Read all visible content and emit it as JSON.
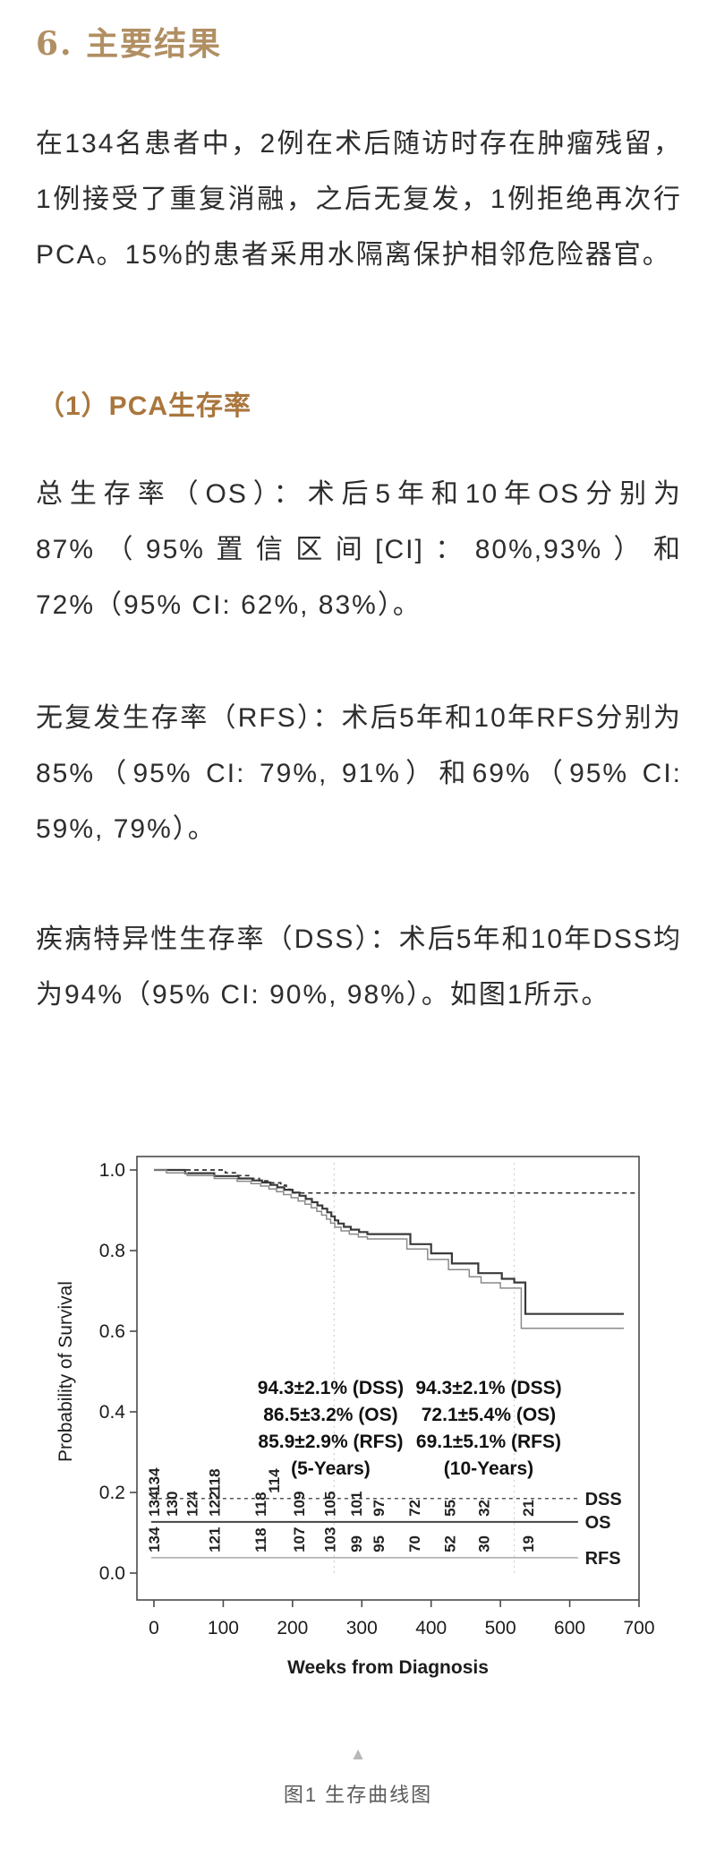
{
  "doc": {
    "section_title": "6. 主要结果",
    "para1": "在134名患者中，2例在术后随访时存在肿瘤残留，1例接受了重复消融，之后无复发，1例拒绝再次行PCA。15%的患者采用水隔离保护相邻危险器官。",
    "sub_heading": "（1）PCA生存率",
    "para_os": "总生存率（OS）：术后5年和10年OS分别为87%（95%置信区间[CI]：80%,93%）和72%（95% CI: 62%, 83%）。",
    "para_rfs": "无复发生存率（RFS）：术后5年和10年RFS分别为85%（95% CI: 79%, 91%）和69%（95% CI: 59%, 79%）。",
    "para_dss": "疾病特异性生存率（DSS）：术后5年和10年DSS均为94%（95% CI: 90%, 98%）。如图1所示。",
    "figure_arrow": "▲",
    "figure_caption": "图1 生存曲线图",
    "colors": {
      "section_title_brown": "#b18f63",
      "sub_heading_brown": "#a9763d",
      "body_text": "#2d2d2d",
      "caption_gray": "#5a5a5a",
      "os_curve": "#3a3a3a",
      "rfs_curve": "#8a8a8a",
      "dss_curve": "#2f2f2f",
      "guide_line": "#c8c8c8"
    }
  },
  "chart_data": {
    "type": "line",
    "subtype": "kaplan-meier-step",
    "title": "",
    "xlabel": "Weeks from Diagnosis",
    "ylabel": "Probability of Survival",
    "xlim": [
      0,
      700
    ],
    "xticks": [
      0,
      100,
      200,
      300,
      400,
      500,
      600,
      700
    ],
    "ylim": [
      0.0,
      1.0
    ],
    "yticks": [
      "0.0",
      "0.2",
      "0.4",
      "0.6",
      "0.8",
      "1.0"
    ],
    "grid": false,
    "vlines_weeks": [
      260,
      520
    ],
    "series": [
      {
        "name": "DSS",
        "style": "dashed",
        "color": "#2f2f2f",
        "width": 1.7,
        "points": [
          [
            0,
            1.0
          ],
          [
            92,
            1.0
          ],
          [
            103,
            0.993
          ],
          [
            121,
            0.986
          ],
          [
            138,
            0.979
          ],
          [
            152,
            0.973
          ],
          [
            164,
            0.968
          ],
          [
            183,
            0.962
          ],
          [
            191,
            0.952
          ],
          [
            197,
            0.943
          ],
          [
            700,
            0.943
          ]
        ]
      },
      {
        "name": "OS",
        "style": "solid",
        "color": "#3a3a3a",
        "width": 2.2,
        "points": [
          [
            0,
            1.0
          ],
          [
            45,
            0.992
          ],
          [
            87,
            0.985
          ],
          [
            122,
            0.979
          ],
          [
            142,
            0.974
          ],
          [
            156,
            0.969
          ],
          [
            168,
            0.963
          ],
          [
            178,
            0.957
          ],
          [
            188,
            0.951
          ],
          [
            200,
            0.944
          ],
          [
            210,
            0.936
          ],
          [
            219,
            0.928
          ],
          [
            228,
            0.92
          ],
          [
            236,
            0.912
          ],
          [
            243,
            0.904
          ],
          [
            250,
            0.895
          ],
          [
            256,
            0.885
          ],
          [
            261,
            0.875
          ],
          [
            266,
            0.867
          ],
          [
            274,
            0.859
          ],
          [
            284,
            0.852
          ],
          [
            296,
            0.846
          ],
          [
            308,
            0.841
          ],
          [
            370,
            0.816
          ],
          [
            400,
            0.793
          ],
          [
            430,
            0.768
          ],
          [
            468,
            0.744
          ],
          [
            502,
            0.73
          ],
          [
            520,
            0.721
          ],
          [
            536,
            0.643
          ],
          [
            678,
            0.643
          ]
        ]
      },
      {
        "name": "RFS",
        "style": "solid",
        "color": "#8a8a8a",
        "width": 1.5,
        "points": [
          [
            0,
            1.0
          ],
          [
            18,
            0.993
          ],
          [
            48,
            0.986
          ],
          [
            87,
            0.979
          ],
          [
            120,
            0.972
          ],
          [
            140,
            0.966
          ],
          [
            154,
            0.96
          ],
          [
            166,
            0.953
          ],
          [
            177,
            0.946
          ],
          [
            187,
            0.939
          ],
          [
            198,
            0.931
          ],
          [
            208,
            0.923
          ],
          [
            218,
            0.915
          ],
          [
            227,
            0.906
          ],
          [
            235,
            0.897
          ],
          [
            242,
            0.888
          ],
          [
            249,
            0.878
          ],
          [
            255,
            0.868
          ],
          [
            261,
            0.858
          ],
          [
            270,
            0.849
          ],
          [
            282,
            0.841
          ],
          [
            295,
            0.834
          ],
          [
            308,
            0.829
          ],
          [
            365,
            0.804
          ],
          [
            395,
            0.778
          ],
          [
            425,
            0.753
          ],
          [
            455,
            0.735
          ],
          [
            472,
            0.72
          ],
          [
            500,
            0.707
          ],
          [
            530,
            0.607
          ],
          [
            678,
            0.607
          ]
        ]
      }
    ],
    "annotations": [
      {
        "anchor_week": 255,
        "lines": [
          "94.3±2.1% (DSS)",
          "86.5±3.2% (OS)",
          "85.9±2.9% (RFS)",
          "(5-Years)"
        ]
      },
      {
        "anchor_week": 483,
        "lines": [
          "94.3±2.1% (DSS)",
          "72.1±5.4% (OS)",
          "69.1±5.1% (RFS)",
          "(10-Years)"
        ]
      }
    ],
    "at_risk": [
      {
        "name": "DSS",
        "line_prob": 0.185,
        "style": "dashed",
        "color": "#555555",
        "width": 1.4,
        "weeks": [
          0,
          87,
          173
        ],
        "counts": [
          134,
          118,
          114
        ]
      },
      {
        "name": "OS",
        "line_prob": 0.127,
        "style": "solid",
        "color": "#444444",
        "width": 2.0,
        "weeks": [
          0,
          26,
          55,
          87,
          154,
          209,
          254,
          292,
          324,
          376,
          427,
          476,
          540
        ],
        "counts": [
          134,
          130,
          124,
          122,
          118,
          109,
          105,
          101,
          97,
          72,
          55,
          32,
          21
        ]
      },
      {
        "name": "RFS",
        "line_prob": 0.038,
        "style": "solid",
        "color": "#999999",
        "width": 1.2,
        "weeks": [
          0,
          87,
          154,
          209,
          254,
          292,
          324,
          376,
          427,
          476,
          540
        ],
        "counts": [
          134,
          121,
          118,
          107,
          103,
          99,
          95,
          70,
          52,
          30,
          19
        ]
      }
    ],
    "legend_position": "right-of-at-risk-lines",
    "risk_line_end_week": 612,
    "risk_label_week": 622
  }
}
